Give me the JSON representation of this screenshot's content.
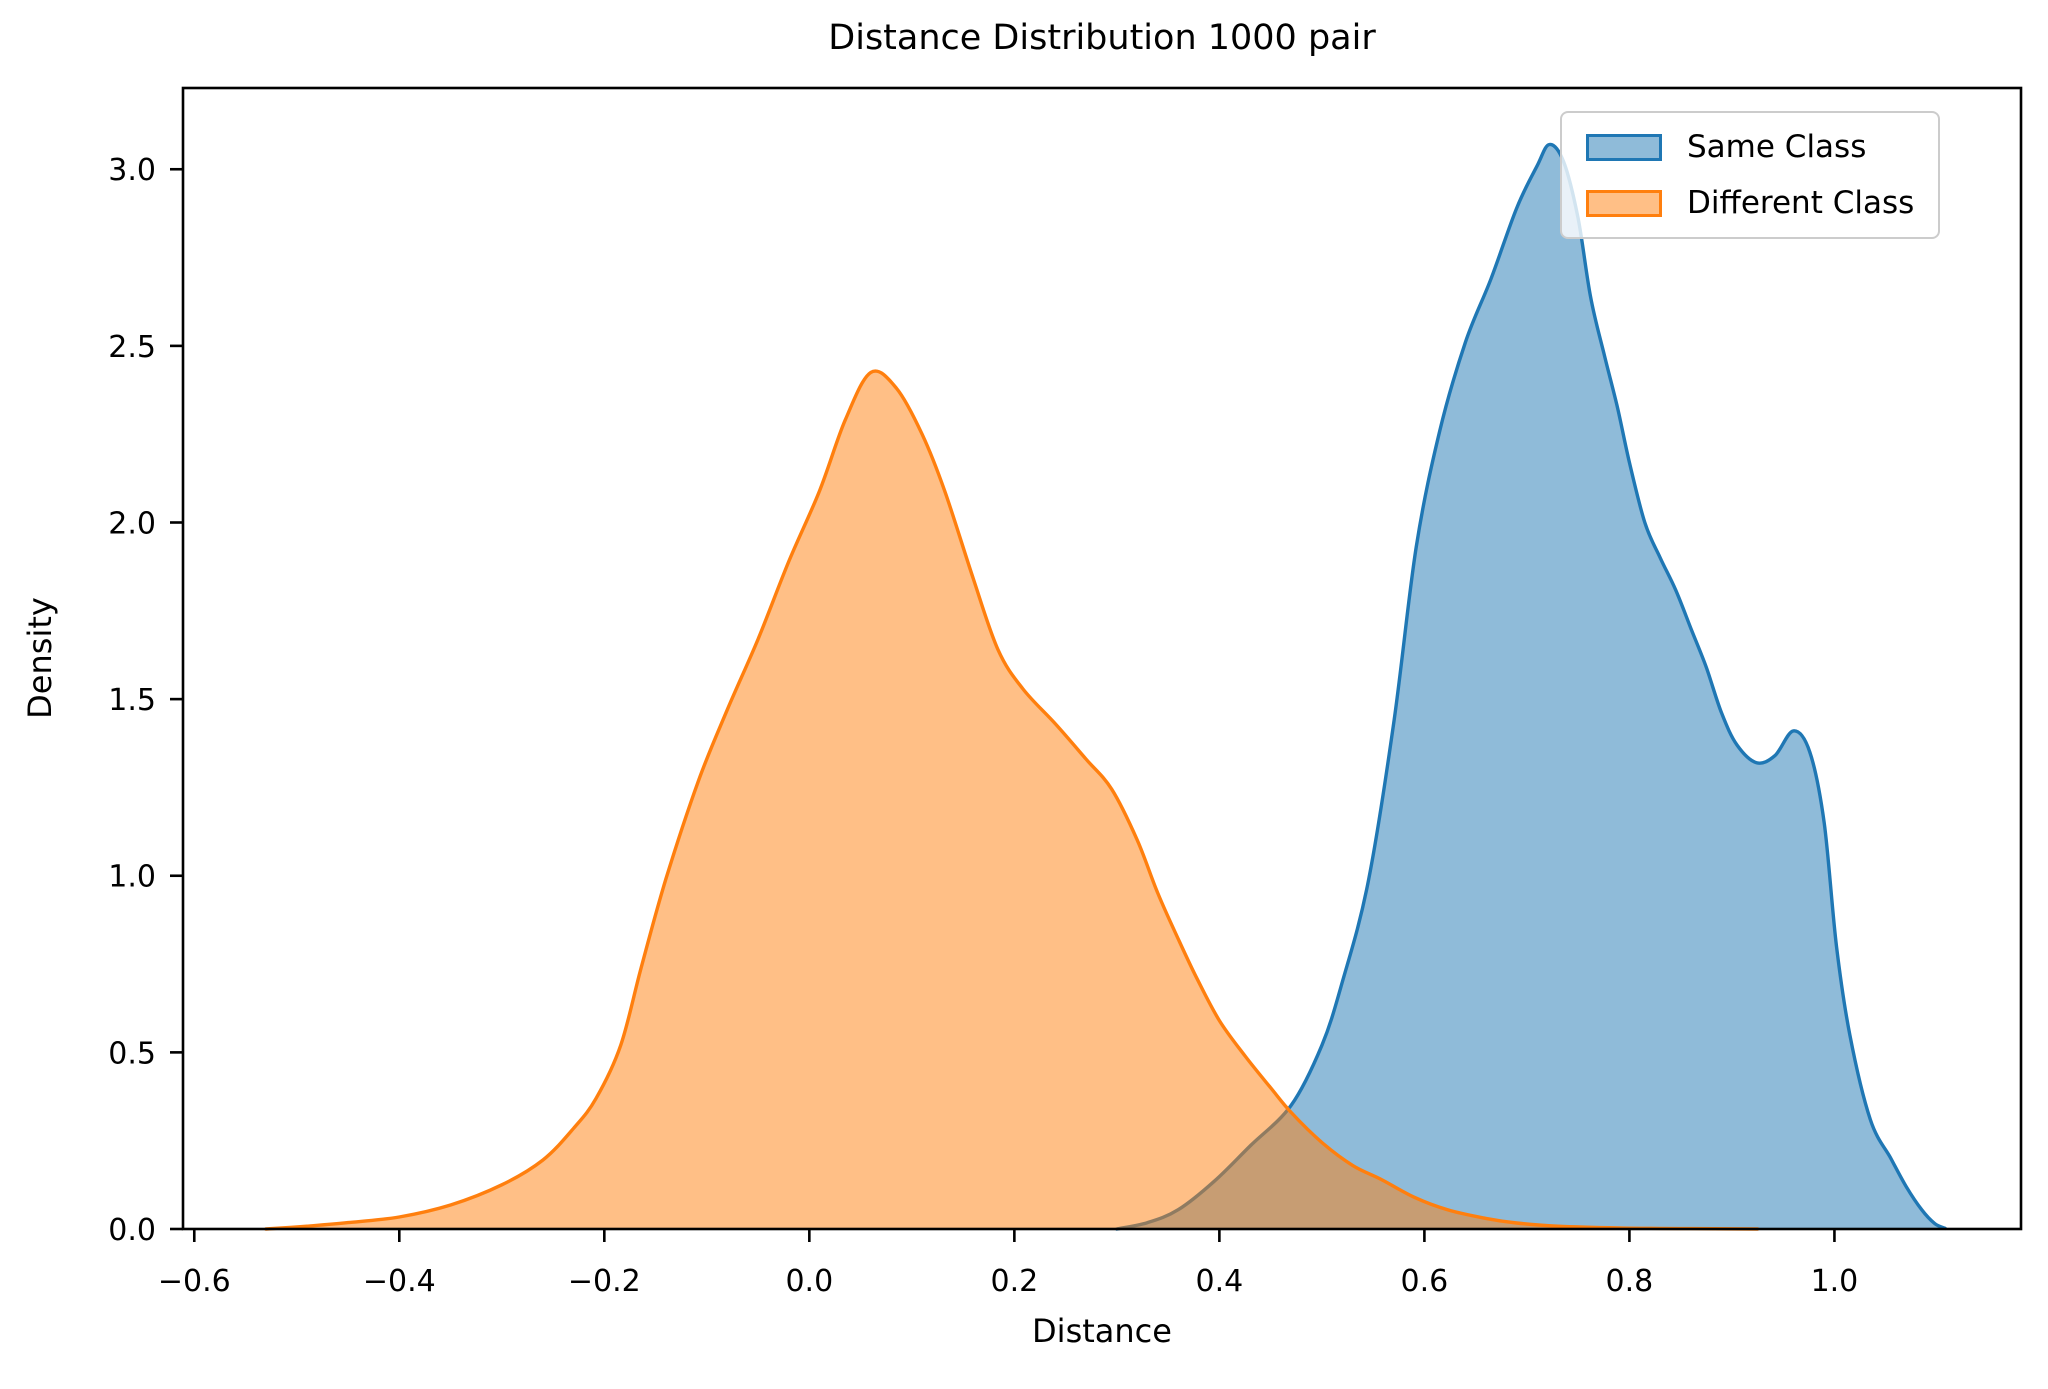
{
  "title": "Distance Distribution 1000 pair",
  "axes": {
    "xlabel": "Distance",
    "ylabel": "Density",
    "x_ticks": [
      {
        "v": -0.6,
        "label": "−0.6"
      },
      {
        "v": -0.4,
        "label": "−0.4"
      },
      {
        "v": -0.2,
        "label": "−0.2"
      },
      {
        "v": 0.0,
        "label": "0.0"
      },
      {
        "v": 0.2,
        "label": "0.2"
      },
      {
        "v": 0.4,
        "label": "0.4"
      },
      {
        "v": 0.6,
        "label": "0.6"
      },
      {
        "v": 0.8,
        "label": "0.8"
      },
      {
        "v": 1.0,
        "label": "1.0"
      }
    ],
    "y_ticks": [
      {
        "v": 0.0,
        "label": "0.0"
      },
      {
        "v": 0.5,
        "label": "0.5"
      },
      {
        "v": 1.0,
        "label": "1.0"
      },
      {
        "v": 1.5,
        "label": "1.5"
      },
      {
        "v": 2.0,
        "label": "2.0"
      },
      {
        "v": 2.5,
        "label": "2.5"
      },
      {
        "v": 3.0,
        "label": "3.0"
      }
    ]
  },
  "legend": {
    "position": "upper right",
    "items": [
      {
        "label": "Same Class",
        "color": "#1f77b4"
      },
      {
        "label": "Different Class",
        "color": "#ff7f0e"
      }
    ]
  },
  "chart_data": {
    "type": "area",
    "subtype": "kde-density",
    "title": "Distance Distribution 1000 pair",
    "xlabel": "Distance",
    "ylabel": "Density",
    "xlim": [
      -0.611,
      1.182
    ],
    "ylim": [
      0,
      3.23
    ],
    "grid": false,
    "fill_alpha": 0.5,
    "frame_color": "#000000",
    "series": [
      {
        "name": "Same Class",
        "color": "#1f77b4",
        "peak": {
          "x": 0.72,
          "y": 3.07
        },
        "points": [
          [
            0.3,
            0.0
          ],
          [
            0.33,
            0.018
          ],
          [
            0.36,
            0.055
          ],
          [
            0.395,
            0.135
          ],
          [
            0.43,
            0.235
          ],
          [
            0.47,
            0.35
          ],
          [
            0.5,
            0.52
          ],
          [
            0.52,
            0.7
          ],
          [
            0.545,
            0.98
          ],
          [
            0.57,
            1.43
          ],
          [
            0.592,
            1.93
          ],
          [
            0.615,
            2.26
          ],
          [
            0.64,
            2.51
          ],
          [
            0.665,
            2.69
          ],
          [
            0.69,
            2.89
          ],
          [
            0.71,
            3.01
          ],
          [
            0.722,
            3.07
          ],
          [
            0.736,
            3.02
          ],
          [
            0.75,
            2.86
          ],
          [
            0.762,
            2.64
          ],
          [
            0.775,
            2.48
          ],
          [
            0.788,
            2.33
          ],
          [
            0.8,
            2.17
          ],
          [
            0.815,
            2.0
          ],
          [
            0.83,
            1.9
          ],
          [
            0.845,
            1.81
          ],
          [
            0.86,
            1.7
          ],
          [
            0.875,
            1.59
          ],
          [
            0.89,
            1.46
          ],
          [
            0.905,
            1.37
          ],
          [
            0.924,
            1.32
          ],
          [
            0.942,
            1.34
          ],
          [
            0.96,
            1.41
          ],
          [
            0.976,
            1.35
          ],
          [
            0.99,
            1.15
          ],
          [
            1.002,
            0.8
          ],
          [
            1.015,
            0.55
          ],
          [
            1.035,
            0.31
          ],
          [
            1.055,
            0.2
          ],
          [
            1.07,
            0.12
          ],
          [
            1.085,
            0.055
          ],
          [
            1.098,
            0.015
          ],
          [
            1.108,
            0.002
          ]
        ]
      },
      {
        "name": "Different Class",
        "color": "#ff7f0e",
        "peak": {
          "x": 0.06,
          "y": 2.43
        },
        "points": [
          [
            -0.53,
            0.0
          ],
          [
            -0.49,
            0.008
          ],
          [
            -0.45,
            0.018
          ],
          [
            -0.4,
            0.034
          ],
          [
            -0.35,
            0.068
          ],
          [
            -0.3,
            0.125
          ],
          [
            -0.26,
            0.195
          ],
          [
            -0.23,
            0.285
          ],
          [
            -0.208,
            0.37
          ],
          [
            -0.184,
            0.52
          ],
          [
            -0.164,
            0.74
          ],
          [
            -0.14,
            0.99
          ],
          [
            -0.108,
            1.27
          ],
          [
            -0.08,
            1.47
          ],
          [
            -0.05,
            1.67
          ],
          [
            -0.02,
            1.89
          ],
          [
            0.01,
            2.09
          ],
          [
            0.035,
            2.29
          ],
          [
            0.06,
            2.425
          ],
          [
            0.085,
            2.38
          ],
          [
            0.11,
            2.25
          ],
          [
            0.132,
            2.09
          ],
          [
            0.16,
            1.84
          ],
          [
            0.184,
            1.64
          ],
          [
            0.208,
            1.53
          ],
          [
            0.24,
            1.43
          ],
          [
            0.27,
            1.33
          ],
          [
            0.295,
            1.245
          ],
          [
            0.32,
            1.1
          ],
          [
            0.34,
            0.95
          ],
          [
            0.36,
            0.82
          ],
          [
            0.378,
            0.71
          ],
          [
            0.4,
            0.59
          ],
          [
            0.425,
            0.49
          ],
          [
            0.45,
            0.4
          ],
          [
            0.47,
            0.33
          ],
          [
            0.5,
            0.245
          ],
          [
            0.53,
            0.18
          ],
          [
            0.558,
            0.14
          ],
          [
            0.59,
            0.09
          ],
          [
            0.623,
            0.054
          ],
          [
            0.66,
            0.03
          ],
          [
            0.69,
            0.017
          ],
          [
            0.73,
            0.008
          ],
          [
            0.79,
            0.003
          ],
          [
            0.86,
            0.001
          ],
          [
            0.925,
            0.0
          ]
        ]
      }
    ]
  }
}
